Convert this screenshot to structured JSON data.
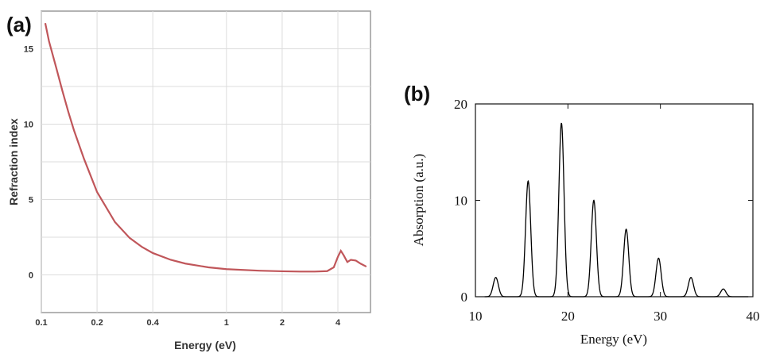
{
  "chart_data": [
    {
      "panel": "(a)",
      "type": "line",
      "xlabel": "Energy (eV)",
      "ylabel": "Refraction index",
      "x_scale": "log",
      "xlim": [
        0.1,
        6
      ],
      "ylim": [
        -2.5,
        17.5
      ],
      "x_ticks": [
        0.1,
        0.2,
        0.4,
        1,
        2,
        4
      ],
      "x_tick_labels": [
        "0.1",
        "0.2",
        "0.4",
        "1",
        "2",
        "4"
      ],
      "y_ticks": [
        0,
        5,
        10,
        15
      ],
      "y_tick_labels": [
        "0",
        "5",
        "10",
        "15"
      ],
      "grid": true,
      "line_color": "#c0565a",
      "series": [
        {
          "x": [
            0.105,
            0.11,
            0.12,
            0.13,
            0.14,
            0.15,
            0.17,
            0.2,
            0.25,
            0.3,
            0.35,
            0.4,
            0.5,
            0.6,
            0.8,
            1.0,
            1.5,
            2.0,
            2.5,
            3.0,
            3.5,
            3.8,
            4.0,
            4.15,
            4.3,
            4.5,
            4.7,
            5.0,
            5.3,
            5.7
          ],
          "y": [
            16.7,
            15.5,
            13.8,
            12.2,
            10.8,
            9.6,
            7.7,
            5.5,
            3.5,
            2.45,
            1.85,
            1.45,
            1.0,
            0.75,
            0.5,
            0.38,
            0.28,
            0.24,
            0.22,
            0.22,
            0.25,
            0.5,
            1.2,
            1.6,
            1.3,
            0.85,
            1.0,
            0.95,
            0.75,
            0.55
          ]
        }
      ]
    },
    {
      "panel": "(b)",
      "type": "line",
      "xlabel": "Energy (eV)",
      "ylabel": "Absorption (a.u.)",
      "xlim": [
        10,
        40
      ],
      "ylim": [
        0,
        20
      ],
      "x_ticks": [
        10,
        20,
        30,
        40
      ],
      "x_tick_labels": [
        "10",
        "20",
        "30",
        "40"
      ],
      "y_ticks": [
        0,
        10,
        20
      ],
      "y_tick_labels": [
        "0",
        "10",
        "20"
      ],
      "grid": false,
      "line_color": "#000000",
      "peak_width": 0.28,
      "peaks": [
        {
          "x": 12.2,
          "y": 2
        },
        {
          "x": 15.7,
          "y": 12
        },
        {
          "x": 19.3,
          "y": 18
        },
        {
          "x": 22.8,
          "y": 10
        },
        {
          "x": 26.3,
          "y": 7
        },
        {
          "x": 29.8,
          "y": 4
        },
        {
          "x": 33.3,
          "y": 2
        },
        {
          "x": 36.8,
          "y": 0.8
        }
      ]
    }
  ]
}
